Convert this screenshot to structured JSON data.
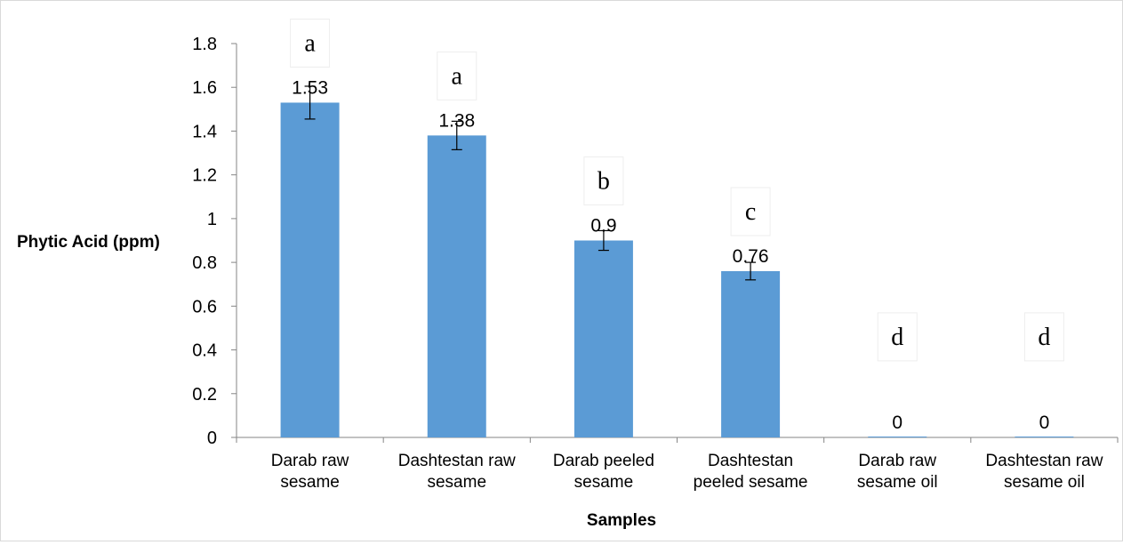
{
  "chart_data": {
    "type": "bar",
    "title": "",
    "xlabel": "Samples",
    "ylabel": "Phytic Acid (ppm)",
    "ylim": [
      0,
      1.8
    ],
    "ytick_step": 0.2,
    "grid": false,
    "legend": "none",
    "bar_color": "#5b9bd5",
    "categories": [
      [
        "Darab raw",
        "sesame"
      ],
      [
        "Dashtestan raw",
        "sesame"
      ],
      [
        "Darab peeled",
        "sesame"
      ],
      [
        "Dashtestan",
        "peeled sesame"
      ],
      [
        "Darab raw",
        "sesame oil"
      ],
      [
        "Dashtestan raw",
        "sesame oil"
      ]
    ],
    "values": [
      1.53,
      1.38,
      0.9,
      0.76,
      0,
      0
    ],
    "data_labels": [
      "1.53",
      "1.38",
      "0.9",
      "0.76",
      "0",
      "0"
    ],
    "error": [
      0.075,
      0.065,
      0.045,
      0.04,
      0,
      0
    ],
    "significance_letters": [
      "a",
      "a",
      "b",
      "c",
      "d",
      "d"
    ],
    "yticks": [
      "0",
      "0.2",
      "0.4",
      "0.6",
      "0.8",
      "1",
      "1.2",
      "1.4",
      "1.6",
      "1.8"
    ]
  }
}
